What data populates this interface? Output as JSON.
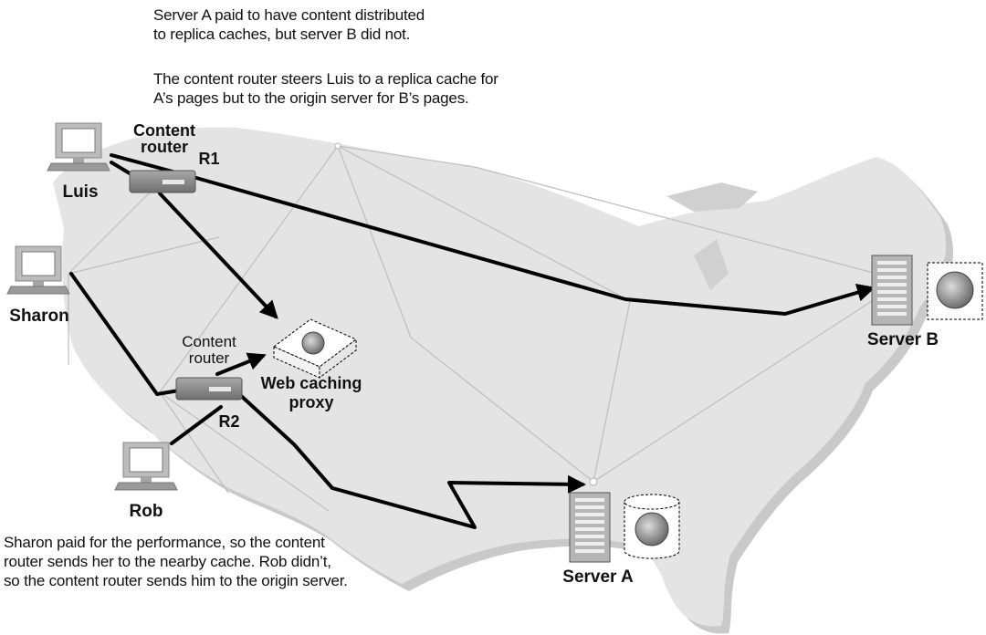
{
  "captions": {
    "top_1": "Server A paid to have content distributed\nto replica caches, but server B did not.",
    "top_2": "The content router steers Luis to a replica cache for\nA’s pages but to the origin server for B’s pages.",
    "bottom": "Sharon paid for the performance, so the content\nrouter sends her to the nearby cache. Rob didn’t,\nso the content router sends him to the origin server."
  },
  "labels": {
    "luis": "Luis",
    "sharon": "Sharon",
    "rob": "Rob",
    "content_router_r1": "Content\nrouter",
    "r1": "R1",
    "content_router_r2": "Content\nrouter",
    "r2": "R2",
    "web_caching_proxy": "Web caching\nproxy",
    "server_a": "Server A",
    "server_b": "Server B"
  },
  "colors": {
    "map_fill": "#e4e4e4",
    "map_shadow": "#c9c9c9",
    "path": "#000000",
    "network_line": "#bdbdbd",
    "router": "#8c8c8c"
  },
  "icons": {
    "client": "computer-icon",
    "router": "router-icon",
    "server": "server-tower-icon",
    "cache": "cache-disk-icon"
  }
}
